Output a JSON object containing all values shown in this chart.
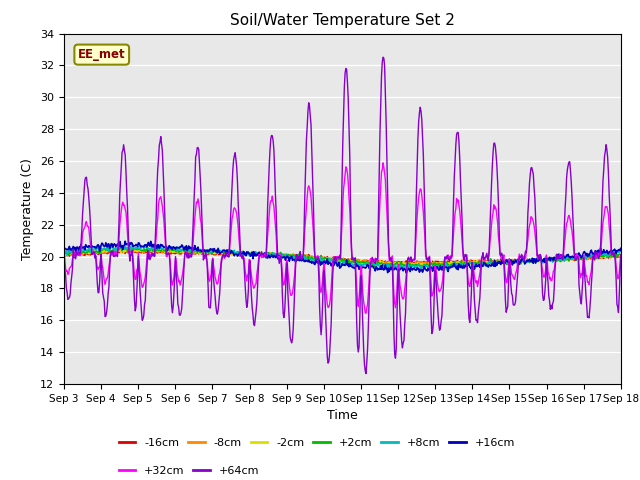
{
  "title": "Soil/Water Temperature Set 2",
  "xlabel": "Time",
  "ylabel": "Temperature (C)",
  "ylim": [
    12,
    34
  ],
  "yticks": [
    12,
    14,
    16,
    18,
    20,
    22,
    24,
    26,
    28,
    30,
    32,
    34
  ],
  "annotation_text": "EE_met",
  "annotation_color": "#880000",
  "annotation_bg": "#ffffcc",
  "annotation_border": "#888800",
  "series_colors": {
    "-16cm": "#dd0000",
    "-8cm": "#ff8800",
    "-2cm": "#dddd00",
    "+2cm": "#00bb00",
    "+8cm": "#00bbbb",
    "+16cm": "#0000bb",
    "+32cm": "#ff00ff",
    "+64cm": "#8800cc"
  },
  "legend_order": [
    "-16cm",
    "-8cm",
    "-2cm",
    "+2cm",
    "+8cm",
    "+16cm",
    "+32cm",
    "+64cm"
  ],
  "plot_bg": "#e8e8e8",
  "n_days": 15,
  "points_per_day": 48,
  "start_day": 3
}
